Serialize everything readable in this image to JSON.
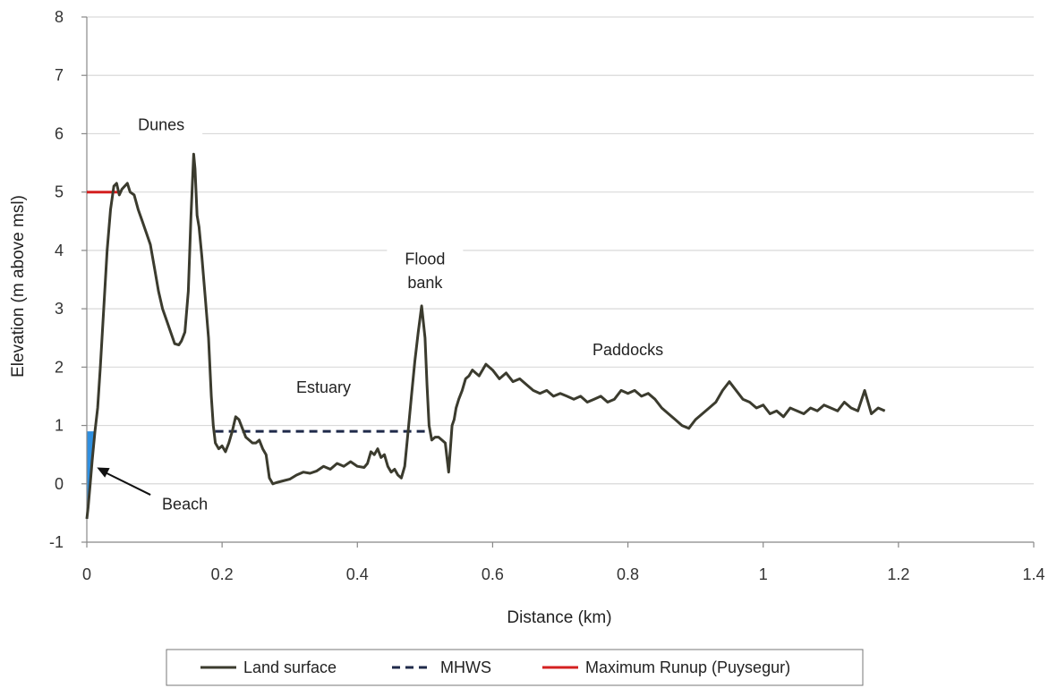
{
  "chart_data": {
    "type": "line",
    "title": "",
    "xlabel": "Distance (km)",
    "ylabel": "Elevation (m above msl)",
    "xlim": [
      0,
      1.4
    ],
    "ylim": [
      -1,
      8
    ],
    "x_ticks": [
      "0",
      "0.2",
      "0.4",
      "0.6",
      "0.8",
      "1",
      "1.2",
      "1.4"
    ],
    "y_ticks": [
      "-1",
      "0",
      "1",
      "2",
      "3",
      "4",
      "5",
      "6",
      "7",
      "8"
    ],
    "grid": "horizontal",
    "legend_position": "bottom",
    "colors": {
      "land_surface": "#3b3b2e",
      "mhws": "#1f2a4a",
      "runup": "#d42020",
      "beach_fill": "#2e8fe0",
      "grid": "#d9d9d9",
      "axis": "#888888"
    },
    "series": [
      {
        "name": "Land surface",
        "style": "solid",
        "x": [
          0.0,
          0.002,
          0.005,
          0.008,
          0.012,
          0.016,
          0.02,
          0.025,
          0.03,
          0.035,
          0.04,
          0.044,
          0.048,
          0.052,
          0.056,
          0.06,
          0.064,
          0.07,
          0.076,
          0.082,
          0.088,
          0.094,
          0.1,
          0.106,
          0.112,
          0.118,
          0.124,
          0.13,
          0.136,
          0.14,
          0.145,
          0.15,
          0.154,
          0.158,
          0.16,
          0.163,
          0.166,
          0.17,
          0.175,
          0.18,
          0.184,
          0.187,
          0.19,
          0.195,
          0.2,
          0.205,
          0.21,
          0.215,
          0.22,
          0.225,
          0.23,
          0.235,
          0.24,
          0.245,
          0.25,
          0.255,
          0.26,
          0.265,
          0.27,
          0.275,
          0.28,
          0.29,
          0.3,
          0.31,
          0.32,
          0.33,
          0.34,
          0.35,
          0.36,
          0.37,
          0.38,
          0.39,
          0.4,
          0.41,
          0.415,
          0.42,
          0.425,
          0.43,
          0.435,
          0.44,
          0.445,
          0.45,
          0.455,
          0.46,
          0.465,
          0.47,
          0.475,
          0.48,
          0.485,
          0.49,
          0.495,
          0.5,
          0.503,
          0.506,
          0.51,
          0.515,
          0.52,
          0.525,
          0.53,
          0.535,
          0.54,
          0.543,
          0.546,
          0.55,
          0.555,
          0.56,
          0.565,
          0.57,
          0.575,
          0.58,
          0.59,
          0.6,
          0.61,
          0.62,
          0.63,
          0.64,
          0.65,
          0.66,
          0.67,
          0.68,
          0.69,
          0.7,
          0.71,
          0.72,
          0.73,
          0.74,
          0.75,
          0.76,
          0.77,
          0.78,
          0.79,
          0.8,
          0.81,
          0.82,
          0.83,
          0.84,
          0.85,
          0.86,
          0.87,
          0.88,
          0.89,
          0.9,
          0.91,
          0.92,
          0.93,
          0.94,
          0.95,
          0.96,
          0.97,
          0.98,
          0.99,
          1.0,
          1.01,
          1.02,
          1.03,
          1.04,
          1.05,
          1.06,
          1.07,
          1.08,
          1.09,
          1.1,
          1.11,
          1.12,
          1.13,
          1.14,
          1.15,
          1.16,
          1.17,
          1.18
        ],
        "y": [
          -0.6,
          -0.4,
          0.0,
          0.4,
          0.9,
          1.3,
          2.0,
          3.0,
          4.0,
          4.7,
          5.1,
          5.15,
          4.95,
          5.05,
          5.1,
          5.15,
          5.0,
          4.95,
          4.7,
          4.5,
          4.3,
          4.1,
          3.7,
          3.3,
          3.0,
          2.8,
          2.6,
          2.4,
          2.38,
          2.45,
          2.6,
          3.3,
          4.6,
          5.65,
          5.4,
          4.6,
          4.4,
          3.9,
          3.2,
          2.5,
          1.5,
          1.0,
          0.7,
          0.6,
          0.65,
          0.55,
          0.7,
          0.9,
          1.15,
          1.1,
          0.95,
          0.8,
          0.75,
          0.7,
          0.7,
          0.75,
          0.6,
          0.5,
          0.1,
          0.0,
          0.02,
          0.05,
          0.08,
          0.15,
          0.2,
          0.18,
          0.22,
          0.3,
          0.25,
          0.35,
          0.3,
          0.38,
          0.3,
          0.28,
          0.35,
          0.55,
          0.5,
          0.6,
          0.45,
          0.5,
          0.3,
          0.2,
          0.25,
          0.15,
          0.1,
          0.3,
          0.9,
          1.5,
          2.1,
          2.6,
          3.05,
          2.5,
          1.7,
          1.0,
          0.75,
          0.8,
          0.8,
          0.75,
          0.7,
          0.2,
          1.0,
          1.1,
          1.3,
          1.45,
          1.6,
          1.8,
          1.85,
          1.95,
          1.9,
          1.85,
          2.05,
          1.95,
          1.8,
          1.9,
          1.75,
          1.8,
          1.7,
          1.6,
          1.55,
          1.6,
          1.5,
          1.55,
          1.5,
          1.45,
          1.5,
          1.4,
          1.45,
          1.5,
          1.4,
          1.45,
          1.6,
          1.55,
          1.6,
          1.5,
          1.55,
          1.45,
          1.3,
          1.2,
          1.1,
          1.0,
          0.95,
          1.1,
          1.2,
          1.3,
          1.4,
          1.6,
          1.75,
          1.6,
          1.45,
          1.4,
          1.3,
          1.35,
          1.2,
          1.25,
          1.15,
          1.3,
          1.25,
          1.2,
          1.3,
          1.25,
          1.35,
          1.3,
          1.25,
          1.4,
          1.3,
          1.25,
          1.6,
          1.2,
          1.3,
          1.25
        ]
      },
      {
        "name": "MHWS",
        "style": "dashed",
        "x": [
          0.19,
          0.5
        ],
        "y": [
          0.9,
          0.9
        ]
      },
      {
        "name": "Maximum Runup (Puysegur)",
        "style": "solid",
        "x": [
          0.0,
          0.05
        ],
        "y": [
          5.0,
          5.0
        ]
      }
    ],
    "beach_fill": {
      "x": [
        0.0,
        0.002,
        0.005,
        0.008,
        0.012,
        0.016
      ],
      "y": [
        -0.6,
        -0.4,
        0.0,
        0.4,
        0.9,
        1.3
      ],
      "cap": 0.9
    },
    "annotations": [
      {
        "text": "Dunes",
        "x": 0.11,
        "y": 6.15
      },
      {
        "text": "Flood",
        "x": 0.5,
        "y": 3.85
      },
      {
        "text": "bank",
        "x": 0.5,
        "y": 3.45
      },
      {
        "text": "Estuary",
        "x": 0.35,
        "y": 1.65
      },
      {
        "text": "Paddocks",
        "x": 0.8,
        "y": 2.3
      },
      {
        "text": "Beach",
        "x": 0.145,
        "y": -0.35
      }
    ],
    "beach_arrow": {
      "from": [
        0.11,
        -0.25
      ],
      "to": [
        0.015,
        0.28
      ]
    },
    "legend": [
      "Land surface",
      "MHWS",
      "Maximum Runup (Puysegur)"
    ]
  }
}
